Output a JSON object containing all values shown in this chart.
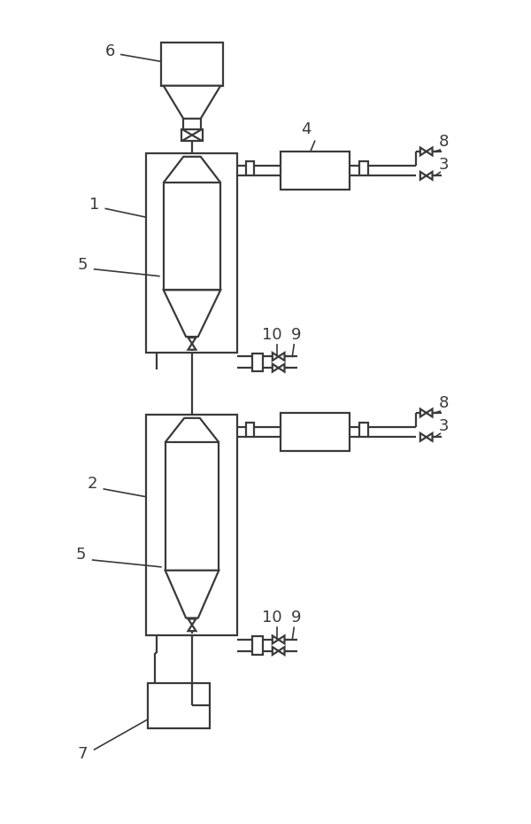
{
  "bg_color": "#ffffff",
  "line_color": "#3a3a3a",
  "lw": 1.6,
  "fig_w": 6.0,
  "fig_h": 9.3,
  "dpi": 100
}
